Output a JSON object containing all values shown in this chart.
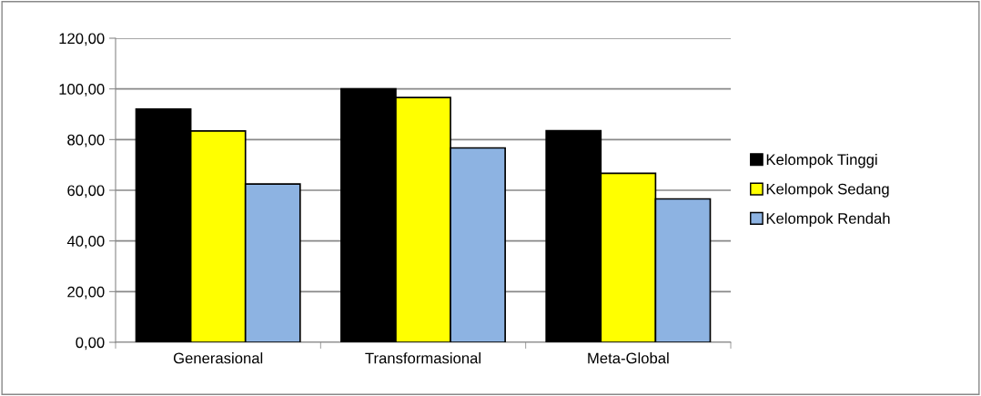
{
  "chart_data": {
    "type": "bar",
    "categories": [
      "Generasional",
      "Transformasional",
      "Meta-Global"
    ],
    "series": [
      {
        "name": "Kelompok Tinggi",
        "color": "#000000",
        "values": [
          92.0,
          100.0,
          83.5
        ]
      },
      {
        "name": "Kelompok Sedang",
        "color": "#ffff00",
        "values": [
          83.4,
          96.6,
          66.7
        ]
      },
      {
        "name": "Kelompok Rendah",
        "color": "#8db3e2",
        "values": [
          62.5,
          76.7,
          56.6
        ]
      }
    ],
    "ylim": [
      0,
      120
    ],
    "yticks": [
      {
        "value": 0,
        "label": "0,00"
      },
      {
        "value": 20,
        "label": "20,00"
      },
      {
        "value": 40,
        "label": "40,00"
      },
      {
        "value": 60,
        "label": "60,00"
      },
      {
        "value": 80,
        "label": "80,00"
      },
      {
        "value": 100,
        "label": "100,00"
      },
      {
        "value": 120,
        "label": "120,00"
      }
    ],
    "grid": "y",
    "legend": "right"
  }
}
